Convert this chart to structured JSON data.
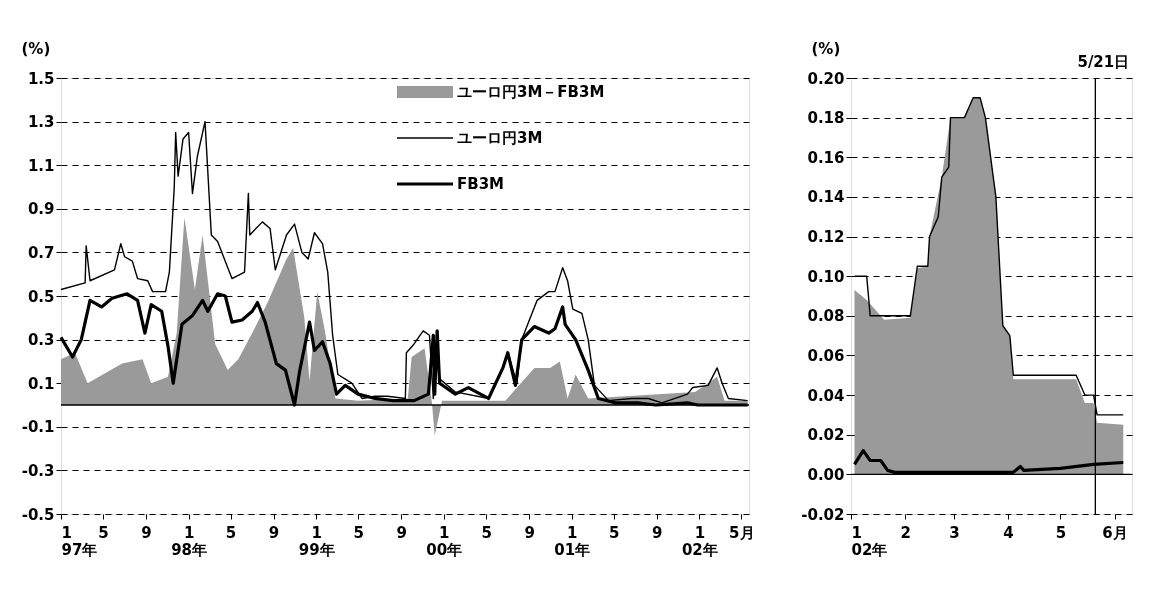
{
  "chart_data": [
    {
      "type": "line",
      "ylabel": "(%)",
      "legend": "top",
      "grid": "y",
      "xlim": [
        "1997-01-01",
        "2002-05-23"
      ],
      "ylim": [
        -0.5,
        1.5
      ],
      "xticks": [
        {
          "value": "1997-01-01",
          "label": "1\n97年"
        },
        {
          "value": "1997-05-01",
          "label": "5"
        },
        {
          "value": "1997-09-01",
          "label": "9"
        },
        {
          "value": "1998-01-01",
          "label": "1\n98年"
        },
        {
          "value": "1998-05-01",
          "label": "5"
        },
        {
          "value": "1998-09-01",
          "label": "9"
        },
        {
          "value": "1999-01-01",
          "label": "1\n99年"
        },
        {
          "value": "1999-05-01",
          "label": "5"
        },
        {
          "value": "1999-09-01",
          "label": "9"
        },
        {
          "value": "2000-01-01",
          "label": "1\n00年"
        },
        {
          "value": "2000-05-01",
          "label": "5"
        },
        {
          "value": "2000-09-01",
          "label": "9"
        },
        {
          "value": "2001-01-01",
          "label": "1\n01年"
        },
        {
          "value": "2001-05-01",
          "label": "5"
        },
        {
          "value": "2001-09-01",
          "label": "9"
        },
        {
          "value": "2002-01-01",
          "label": "1\n02年"
        },
        {
          "value": "2002-05-01",
          "label": "5月"
        }
      ],
      "yticks": [
        1.5,
        1.3,
        1.1,
        0.9,
        0.7,
        0.5,
        0.3,
        0.1,
        -0.1,
        -0.3,
        -0.5
      ],
      "ref_lines": [
        {
          "axis": "y",
          "value": 0,
          "color": "#000000"
        }
      ],
      "series": [
        {
          "name": "ユーロ円3M－FB3M",
          "type": "area",
          "color": "#9a9a9a",
          "x": [
            "1997-01-01",
            "1997-02-10",
            "1997-03-18",
            "1997-06-25",
            "1997-08-22",
            "1997-09-16",
            "1997-11-03",
            "1997-11-28",
            "1997-12-20",
            "1998-01-19",
            "1998-02-10",
            "1998-03-18",
            "1998-04-23",
            "1998-05-23",
            "1998-07-02",
            "1998-08-15",
            "1998-10-08",
            "1998-10-27",
            "1998-11-28",
            "1998-12-13",
            "1999-01-04",
            "1999-01-26",
            "1999-02-25",
            "1999-05-01",
            "1999-09-20",
            "1999-10-01",
            "1999-11-07",
            "1999-11-28",
            "1999-12-06",
            "1999-12-27",
            "2000-06-25",
            "2000-09-16",
            "2000-10-31",
            "2000-11-28",
            "2000-12-20",
            "2001-01-12",
            "2001-02-17",
            "2001-12-20",
            "2002-02-21",
            "2002-03-14",
            "2002-05-19"
          ],
          "values": [
            0.21,
            0.24,
            0.1,
            0.19,
            0.21,
            0.1,
            0.13,
            0.33,
            0.86,
            0.53,
            0.78,
            0.28,
            0.16,
            0.21,
            0.33,
            0.47,
            0.67,
            0.72,
            0.4,
            0.11,
            0.52,
            0.34,
            0.03,
            0.02,
            0.03,
            0.22,
            0.26,
            0.01,
            -0.14,
            0.02,
            0.02,
            0.17,
            0.17,
            0.2,
            0.03,
            0.14,
            0.03,
            0.06,
            0.13,
            0.02,
            0.02
          ]
        },
        {
          "name": "ユーロ円3M",
          "type": "line",
          "color": "#000000",
          "x": [
            "1997-01-01",
            "1997-03-11",
            "1997-03-14",
            "1997-03-25",
            "1997-06-03",
            "1997-06-21",
            "1997-07-02",
            "1997-07-24",
            "1997-08-08",
            "1997-09-06",
            "1997-09-20",
            "1997-10-27",
            "1997-11-07",
            "1997-11-21",
            "1997-11-25",
            "1997-12-02",
            "1997-12-16",
            "1998-01-01",
            "1998-01-12",
            "1998-01-26",
            "1998-02-17",
            "1998-03-07",
            "1998-03-25",
            "1998-05-05",
            "1998-06-10",
            "1998-06-21",
            "1998-06-25",
            "1998-07-31",
            "1998-08-22",
            "1998-09-06",
            "1998-10-08",
            "1998-10-31",
            "1998-11-21",
            "1998-12-09",
            "1998-12-27",
            "1999-01-19",
            "1999-02-03",
            "1999-02-17",
            "1999-03-04",
            "1999-04-13",
            "1999-05-12",
            "1999-06-18",
            "1999-07-24",
            "1999-09-13",
            "1999-09-16",
            "1999-10-08",
            "1999-11-03",
            "1999-11-21",
            "1999-12-02",
            "1999-12-13",
            "1999-12-20",
            "2000-02-03",
            "2000-05-08",
            "2000-06-18",
            "2000-07-02",
            "2000-07-28",
            "2000-08-11",
            "2000-09-24",
            "2000-10-27",
            "2000-11-14",
            "2000-12-06",
            "2000-12-20",
            "2001-01-04",
            "2001-01-30",
            "2001-02-17",
            "2001-03-07",
            "2001-04-16",
            "2001-06-21",
            "2001-08-08",
            "2001-09-16",
            "2001-11-28",
            "2001-12-13",
            "2002-01-26",
            "2002-02-21",
            "2002-03-07",
            "2002-03-25",
            "2002-05-19"
          ],
          "values": [
            0.53,
            0.56,
            0.73,
            0.57,
            0.62,
            0.74,
            0.68,
            0.66,
            0.58,
            0.57,
            0.52,
            0.52,
            0.61,
            1.0,
            1.25,
            1.05,
            1.22,
            1.25,
            0.97,
            1.14,
            1.3,
            0.78,
            0.75,
            0.58,
            0.61,
            0.97,
            0.78,
            0.84,
            0.81,
            0.62,
            0.78,
            0.83,
            0.7,
            0.67,
            0.79,
            0.74,
            0.61,
            0.32,
            0.14,
            0.1,
            0.03,
            0.04,
            0.04,
            0.03,
            0.24,
            0.28,
            0.34,
            0.32,
            0.03,
            0.32,
            0.12,
            0.06,
            0.03,
            0.17,
            0.24,
            0.1,
            0.3,
            0.48,
            0.52,
            0.52,
            0.63,
            0.57,
            0.44,
            0.42,
            0.3,
            0.09,
            0.02,
            0.03,
            0.03,
            0.01,
            0.05,
            0.08,
            0.09,
            0.17,
            0.1,
            0.03,
            0.02
          ]
        },
        {
          "name": "FB3M",
          "type": "line",
          "color": "#000000",
          "x": [
            "1997-01-01",
            "1997-02-03",
            "1997-02-28",
            "1997-03-25",
            "1997-04-27",
            "1997-05-27",
            "1997-07-09",
            "1997-08-08",
            "1997-08-29",
            "1997-09-16",
            "1997-10-16",
            "1997-11-03",
            "1997-11-18",
            "1997-12-13",
            "1998-01-12",
            "1998-02-10",
            "1998-02-25",
            "1998-03-25",
            "1998-04-16",
            "1998-05-05",
            "1998-06-03",
            "1998-07-02",
            "1998-07-17",
            "1998-08-08",
            "1998-09-09",
            "1998-10-05",
            "1998-10-31",
            "1998-11-14",
            "1998-12-13",
            "1998-12-27",
            "1999-01-19",
            "1999-02-10",
            "1999-02-28",
            "1999-03-25",
            "1999-05-01",
            "1999-06-18",
            "1999-08-08",
            "1999-10-08",
            "1999-11-18",
            "1999-12-02",
            "1999-12-06",
            "1999-12-13",
            "1999-12-20",
            "2000-02-03",
            "2000-03-11",
            "2000-05-08",
            "2000-06-18",
            "2000-07-02",
            "2000-07-24",
            "2000-08-11",
            "2000-09-16",
            "2000-10-27",
            "2000-11-14",
            "2000-12-06",
            "2000-12-13",
            "2001-01-12",
            "2001-02-17",
            "2001-03-18",
            "2001-05-05",
            "2001-07-09",
            "2001-08-29",
            "2001-11-28",
            "2001-12-27",
            "2002-05-19"
          ],
          "values": [
            0.31,
            0.22,
            0.3,
            0.48,
            0.45,
            0.49,
            0.51,
            0.48,
            0.33,
            0.46,
            0.43,
            0.27,
            0.1,
            0.37,
            0.41,
            0.48,
            0.43,
            0.51,
            0.5,
            0.38,
            0.39,
            0.43,
            0.47,
            0.38,
            0.19,
            0.16,
            0.0,
            0.15,
            0.38,
            0.25,
            0.29,
            0.19,
            0.05,
            0.09,
            0.05,
            0.03,
            0.02,
            0.02,
            0.05,
            0.32,
            0.05,
            0.34,
            0.1,
            0.05,
            0.08,
            0.03,
            0.17,
            0.24,
            0.09,
            0.3,
            0.36,
            0.33,
            0.35,
            0.45,
            0.37,
            0.3,
            0.16,
            0.03,
            0.01,
            0.01,
            0.0,
            0.01,
            0.0,
            0.0
          ]
        }
      ]
    },
    {
      "type": "line",
      "ylabel": "(%)",
      "grid": "y",
      "xlim": [
        "2002-01-01",
        "2002-06-11"
      ],
      "ylim": [
        -0.02,
        0.2
      ],
      "xticks": [
        {
          "value": "2002-01-01",
          "label": "1\n02年"
        },
        {
          "value": "2002-02-01",
          "label": "2"
        },
        {
          "value": "2002-03-01",
          "label": "3"
        },
        {
          "value": "2002-04-01",
          "label": "4"
        },
        {
          "value": "2002-05-01",
          "label": "5"
        },
        {
          "value": "2002-06-01",
          "label": "6月"
        }
      ],
      "yticks": [
        {
          "value": 0.2,
          "label": "0.20"
        },
        {
          "value": 0.18,
          "label": "0.18"
        },
        {
          "value": 0.16,
          "label": "0.16"
        },
        {
          "value": 0.14,
          "label": "0.14"
        },
        {
          "value": 0.12,
          "label": "0.12"
        },
        {
          "value": 0.1,
          "label": "0.10"
        },
        {
          "value": 0.08,
          "label": "0.08"
        },
        {
          "value": 0.06,
          "label": "0.06"
        },
        {
          "value": 0.04,
          "label": "0.04"
        },
        {
          "value": 0.02,
          "label": "0.02"
        },
        {
          "value": 0,
          "label": "0.00"
        },
        {
          "value": -0.02,
          "label": "-0.02"
        }
      ],
      "ref_lines": [
        {
          "axis": "y",
          "value": 0,
          "color": "#000000"
        },
        {
          "axis": "x",
          "value": "2002-05-21",
          "label": "5/21日",
          "color": "#000000"
        }
      ],
      "series": [
        {
          "type": "area",
          "color": "#9a9a9a",
          "x": [
            "2002-01-03",
            "2002-01-10",
            "2002-01-20",
            "2002-02-04",
            "2002-02-08",
            "2002-02-14",
            "2002-02-15",
            "2002-02-22",
            "2002-02-27",
            "2002-03-07",
            "2002-03-12",
            "2002-03-16",
            "2002-03-19",
            "2002-03-25",
            "2002-03-29",
            "2002-04-02",
            "2002-04-04",
            "2002-05-10",
            "2002-05-15",
            "2002-05-20",
            "2002-05-22",
            "2002-06-06"
          ],
          "values": [
            0.093,
            0.088,
            0.078,
            0.079,
            0.104,
            0.105,
            0.12,
            0.15,
            0.18,
            0.18,
            0.19,
            0.19,
            0.18,
            0.14,
            0.075,
            0.07,
            0.048,
            0.048,
            0.036,
            0.036,
            0.026,
            0.025
          ]
        },
        {
          "type": "line",
          "color": "#000000",
          "x": [
            "2002-01-03",
            "2002-01-10",
            "2002-01-12",
            "2002-02-04",
            "2002-02-08",
            "2002-02-14",
            "2002-02-15",
            "2002-02-20",
            "2002-02-22",
            "2002-02-26",
            "2002-02-27",
            "2002-03-07",
            "2002-03-12",
            "2002-03-16",
            "2002-03-19",
            "2002-03-25",
            "2002-03-29",
            "2002-04-02",
            "2002-04-04",
            "2002-05-10",
            "2002-05-15",
            "2002-05-20",
            "2002-05-22",
            "2002-06-06"
          ],
          "values": [
            0.1,
            0.1,
            0.08,
            0.08,
            0.105,
            0.105,
            0.12,
            0.13,
            0.15,
            0.155,
            0.18,
            0.18,
            0.19,
            0.19,
            0.18,
            0.14,
            0.075,
            0.07,
            0.05,
            0.05,
            0.04,
            0.04,
            0.03,
            0.03
          ]
        },
        {
          "type": "line",
          "color": "#000000",
          "x": [
            "2002-01-03",
            "2002-01-08",
            "2002-01-12",
            "2002-01-18",
            "2002-01-22",
            "2002-01-26",
            "2002-04-04",
            "2002-04-08",
            "2002-04-10",
            "2002-05-01",
            "2002-05-20",
            "2002-06-06"
          ],
          "values": [
            0.005,
            0.012,
            0.007,
            0.007,
            0.002,
            0.001,
            0.001,
            0.004,
            0.002,
            0.003,
            0.005,
            0.006
          ]
        }
      ]
    }
  ]
}
